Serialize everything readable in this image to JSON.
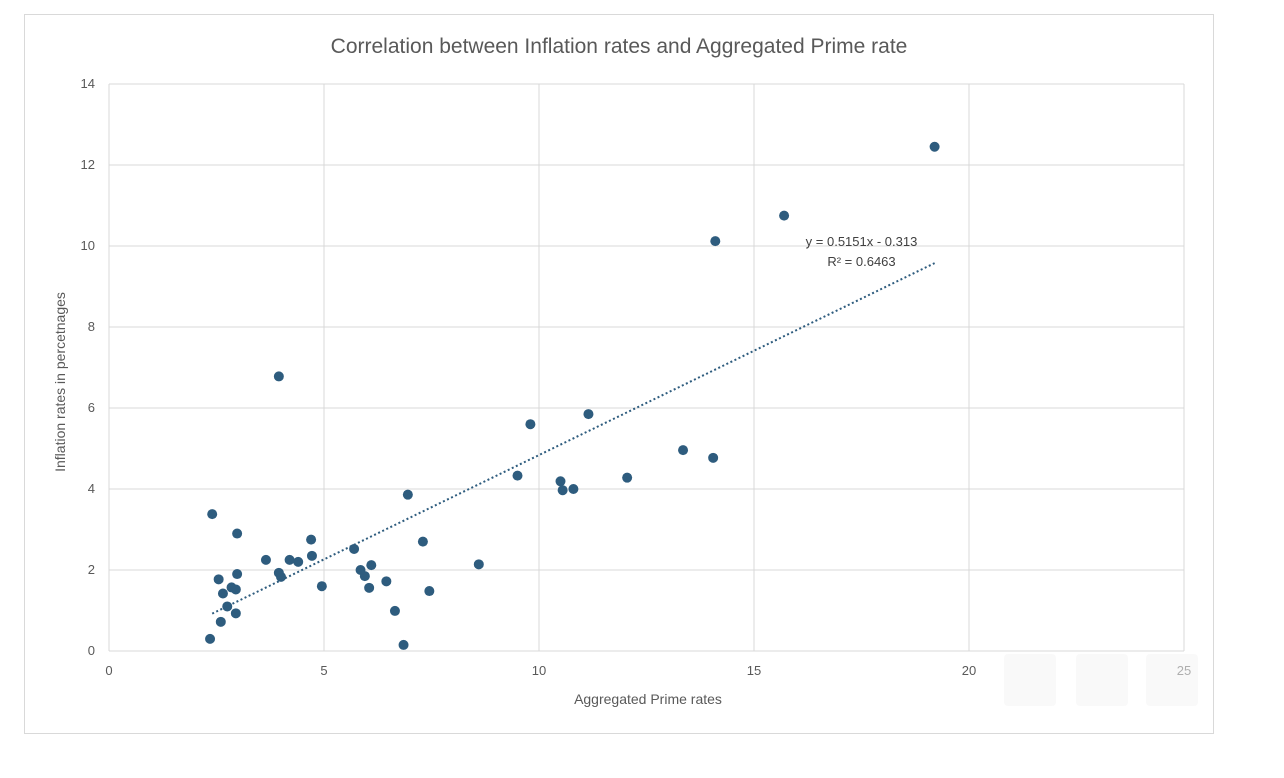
{
  "chart_data": {
    "type": "scatter",
    "title": "Correlation between Inflation rates and Aggregated Prime rate",
    "xlabel": "Aggregated Prime rates",
    "ylabel": "Inflation rates in percetnages",
    "xlim": [
      0,
      25
    ],
    "ylim": [
      0,
      14
    ],
    "xticks": [
      0,
      5,
      10,
      15,
      20,
      25
    ],
    "yticks": [
      0,
      2,
      4,
      6,
      8,
      10,
      12,
      14
    ],
    "grid": true,
    "marker_color": "#2e5c7e",
    "trendline": {
      "slope": 0.5151,
      "intercept": -0.313,
      "x_range": [
        2.4,
        19.2
      ],
      "style": "dotted",
      "color": "#2e5c7e",
      "equation_label": "y = 0.5151x - 0.313",
      "r2_label": "R² = 0.6463"
    },
    "points": [
      {
        "x": 2.35,
        "y": 0.3
      },
      {
        "x": 2.4,
        "y": 3.38
      },
      {
        "x": 2.55,
        "y": 1.77
      },
      {
        "x": 2.6,
        "y": 0.72
      },
      {
        "x": 2.65,
        "y": 1.42
      },
      {
        "x": 2.75,
        "y": 1.1
      },
      {
        "x": 2.85,
        "y": 1.57
      },
      {
        "x": 2.95,
        "y": 1.52
      },
      {
        "x": 2.95,
        "y": 0.93
      },
      {
        "x": 2.98,
        "y": 2.9
      },
      {
        "x": 2.98,
        "y": 1.9
      },
      {
        "x": 3.65,
        "y": 2.25
      },
      {
        "x": 3.95,
        "y": 1.93
      },
      {
        "x": 4.0,
        "y": 1.83
      },
      {
        "x": 3.95,
        "y": 6.78
      },
      {
        "x": 4.2,
        "y": 2.25
      },
      {
        "x": 4.4,
        "y": 2.2
      },
      {
        "x": 4.7,
        "y": 2.75
      },
      {
        "x": 4.72,
        "y": 2.35
      },
      {
        "x": 4.95,
        "y": 1.6
      },
      {
        "x": 5.7,
        "y": 2.52
      },
      {
        "x": 5.85,
        "y": 2.0
      },
      {
        "x": 5.95,
        "y": 1.85
      },
      {
        "x": 6.05,
        "y": 1.56
      },
      {
        "x": 6.1,
        "y": 2.12
      },
      {
        "x": 6.45,
        "y": 1.72
      },
      {
        "x": 6.65,
        "y": 0.99
      },
      {
        "x": 6.85,
        "y": 0.15
      },
      {
        "x": 6.95,
        "y": 3.86
      },
      {
        "x": 7.3,
        "y": 2.7
      },
      {
        "x": 7.45,
        "y": 1.48
      },
      {
        "x": 8.6,
        "y": 2.14
      },
      {
        "x": 9.5,
        "y": 4.33
      },
      {
        "x": 9.8,
        "y": 5.6
      },
      {
        "x": 10.5,
        "y": 4.19
      },
      {
        "x": 10.55,
        "y": 3.97
      },
      {
        "x": 10.8,
        "y": 4.0
      },
      {
        "x": 11.15,
        "y": 5.85
      },
      {
        "x": 12.05,
        "y": 4.28
      },
      {
        "x": 13.35,
        "y": 4.96
      },
      {
        "x": 14.05,
        "y": 4.77
      },
      {
        "x": 14.1,
        "y": 10.12
      },
      {
        "x": 15.7,
        "y": 10.75
      },
      {
        "x": 19.2,
        "y": 12.45
      }
    ]
  },
  "toolbar": {
    "icons": [
      "chart-elements-icon",
      "chart-styles-icon",
      "chart-filters-icon"
    ]
  }
}
